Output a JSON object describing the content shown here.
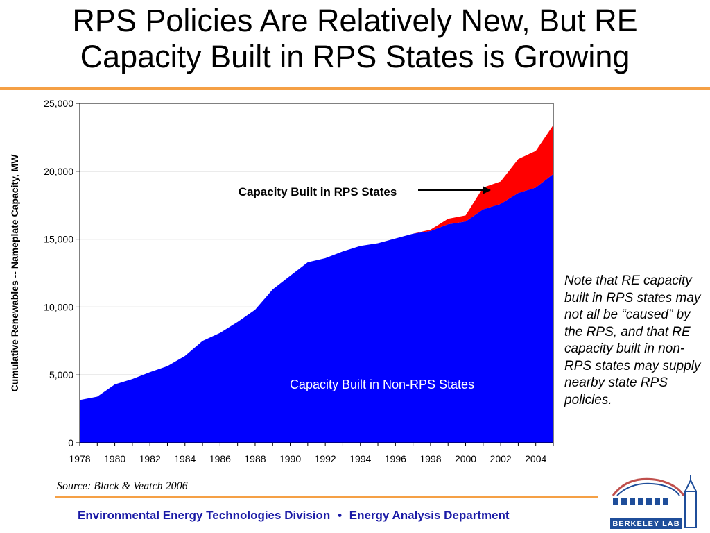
{
  "title": {
    "line1": "RPS Policies Are Relatively New, But RE",
    "line2": "Capacity Built in RPS States is Growing"
  },
  "colors": {
    "accent_rule": "#f5a045",
    "non_rps": "#0000ff",
    "rps": "#ff0000",
    "footer_text": "#1a1aa6"
  },
  "note": "Note that RE capacity built in RPS states may not all be “caused” by the RPS, and that RE capacity built in non-RPS states may supply nearby state RPS policies.",
  "source": "Source: Black & Veatch 2006",
  "footer": {
    "division": "Environmental Energy Technologies Division",
    "separator": "•",
    "department": "Energy Analysis Department"
  },
  "logo": {
    "text": "BERKELEY LAB",
    "icon": "berkeley-lab-logo"
  },
  "chart_data": {
    "type": "area",
    "title": "",
    "xlabel": "",
    "ylabel": "Cumulative Renewables -- Nameplate Capacity, MW",
    "ylim": [
      0,
      25000
    ],
    "yticks": [
      "0",
      "5,000",
      "10,000",
      "15,000",
      "20,000",
      "25,000"
    ],
    "xticks": [
      "1978",
      "1980",
      "1982",
      "1984",
      "1986",
      "1988",
      "1990",
      "1992",
      "1994",
      "1996",
      "1998",
      "2000",
      "2002",
      "2004"
    ],
    "grid": "horizontal",
    "x": [
      1978,
      1979,
      1980,
      1981,
      1982,
      1983,
      1984,
      1985,
      1986,
      1987,
      1988,
      1989,
      1990,
      1991,
      1992,
      1993,
      1994,
      1995,
      1996,
      1997,
      1998,
      1999,
      2000,
      2001,
      2002,
      2003,
      2004,
      2005
    ],
    "series": [
      {
        "name": "Capacity Built in Non-RPS States",
        "color": "#0000ff",
        "values": [
          3150,
          3400,
          4300,
          4700,
          5200,
          5650,
          6400,
          7500,
          8100,
          8900,
          9800,
          11300,
          12300,
          13300,
          13600,
          14100,
          14500,
          14700,
          15050,
          15400,
          15600,
          16100,
          16300,
          17200,
          17600,
          18400,
          18800,
          19800
        ]
      },
      {
        "name": "Capacity Built in RPS States",
        "color": "#ff0000",
        "values": [
          0,
          0,
          0,
          0,
          0,
          0,
          0,
          0,
          0,
          0,
          0,
          0,
          0,
          0,
          0,
          0,
          0,
          0,
          0,
          0,
          100,
          400,
          450,
          1600,
          1650,
          2500,
          2700,
          3600
        ]
      }
    ],
    "annotations": {
      "rps": "Capacity Built in RPS States",
      "non_rps": "Capacity Built in Non-RPS States"
    }
  }
}
